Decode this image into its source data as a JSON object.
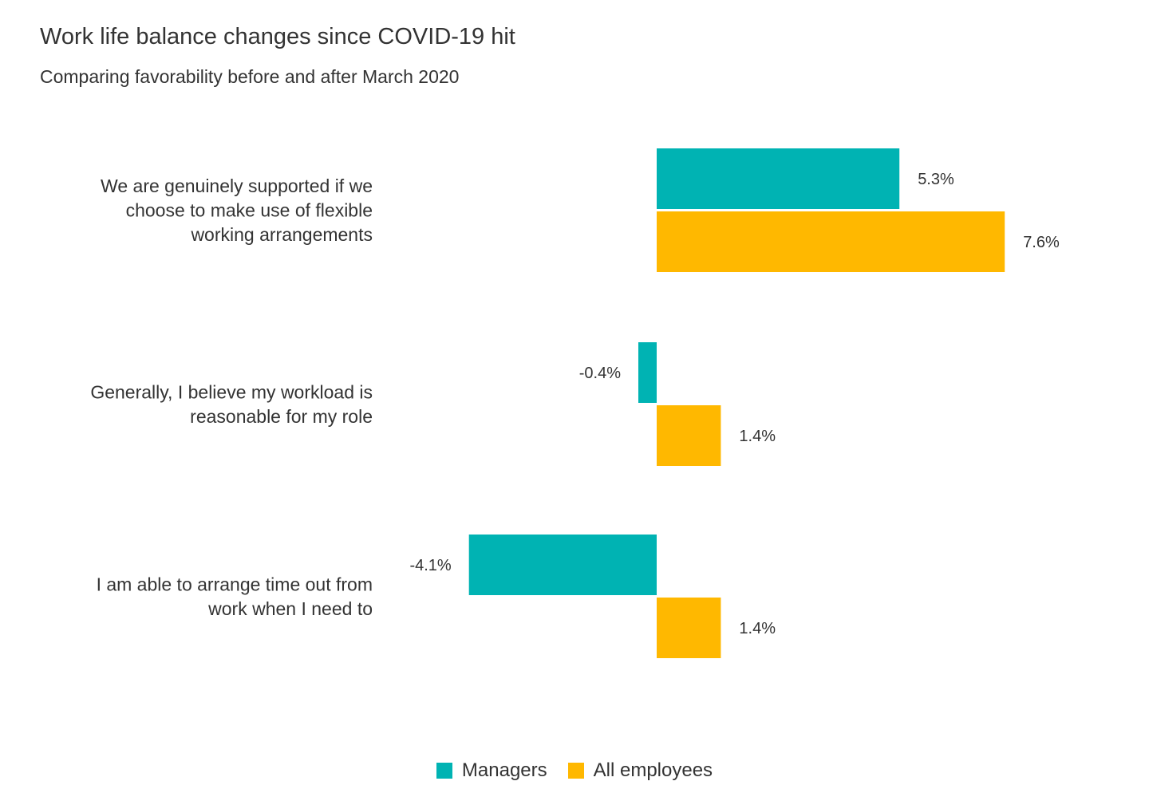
{
  "chart_data": {
    "type": "bar",
    "orientation": "horizontal",
    "title": "Work life balance changes since COVID-19 hit",
    "subtitle": "Comparing favorability before and after March 2020",
    "categories": [
      [
        "We are genuinely supported if we",
        "choose to make use of flexible",
        "working arrangements"
      ],
      [
        "Generally, I believe my workload is",
        "reasonable for my role"
      ],
      [
        "I am able to arrange time out from",
        "work when I need to"
      ]
    ],
    "series": [
      {
        "name": "Managers",
        "color": "#00B3B3",
        "values": [
          5.3,
          -0.4,
          -4.1
        ],
        "labels": [
          "5.3%",
          "-0.4%",
          "-4.1%"
        ]
      },
      {
        "name": "All employees",
        "color": "#FFB800",
        "values": [
          7.6,
          1.4,
          1.4
        ],
        "labels": [
          "7.6%",
          "1.4%",
          "1.4%"
        ]
      }
    ],
    "grid": false,
    "axes_visible": false,
    "legend_position": "bottom-center"
  }
}
